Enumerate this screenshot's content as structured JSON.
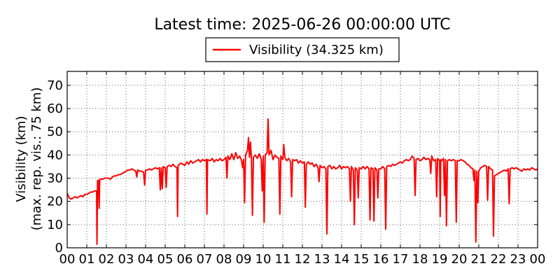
{
  "chart_data": {
    "type": "line",
    "title": "Latest time: 2025-06-26 00:00:00 UTC",
    "ylabel_line1": "Visibility (km)",
    "ylabel_line2": "(max. rep. vis.: 75 km)",
    "xlabel": "",
    "ylim": [
      0,
      75
    ],
    "xlim": [
      0,
      24
    ],
    "grid": true,
    "legend_position": "top-center",
    "x_tick_labels": [
      "00",
      "01",
      "02",
      "03",
      "04",
      "05",
      "06",
      "07",
      "08",
      "09",
      "10",
      "11",
      "12",
      "13",
      "14",
      "15",
      "16",
      "17",
      "18",
      "19",
      "20",
      "21",
      "22",
      "23",
      "00"
    ],
    "y_tick_labels": [
      "0",
      "10",
      "20",
      "30",
      "40",
      "50",
      "60",
      "70"
    ],
    "series": [
      {
        "name": "Visibility (34.325 km)",
        "color": "#ff0000",
        "points": [
          [
            0.0,
            23.5
          ],
          [
            0.1,
            21.5
          ],
          [
            0.2,
            21.0
          ],
          [
            0.3,
            21.5
          ],
          [
            0.4,
            22.0
          ],
          [
            0.5,
            21.5
          ],
          [
            0.6,
            22.0
          ],
          [
            0.7,
            22.5
          ],
          [
            0.8,
            22.0
          ],
          [
            0.9,
            23.0
          ],
          [
            1.0,
            23.0
          ],
          [
            1.1,
            23.5
          ],
          [
            1.2,
            24.0
          ],
          [
            1.3,
            24.0
          ],
          [
            1.4,
            24.5
          ],
          [
            1.5,
            24.5
          ],
          [
            1.52,
            1.5
          ],
          [
            1.55,
            29.0
          ],
          [
            1.6,
            29.0
          ],
          [
            1.63,
            17.0
          ],
          [
            1.66,
            29.5
          ],
          [
            1.8,
            29.5
          ],
          [
            1.9,
            30.0
          ],
          [
            2.0,
            30.0
          ],
          [
            2.1,
            30.0
          ],
          [
            2.2,
            29.5
          ],
          [
            2.3,
            30.5
          ],
          [
            2.4,
            31.0
          ],
          [
            2.5,
            31.0
          ],
          [
            2.6,
            31.5
          ],
          [
            2.7,
            31.5
          ],
          [
            2.8,
            32.0
          ],
          [
            2.9,
            32.5
          ],
          [
            3.0,
            33.0
          ],
          [
            3.1,
            33.5
          ],
          [
            3.2,
            33.5
          ],
          [
            3.3,
            34.0
          ],
          [
            3.4,
            33.5
          ],
          [
            3.5,
            33.0
          ],
          [
            3.55,
            30.5
          ],
          [
            3.6,
            33.5
          ],
          [
            3.7,
            33.0
          ],
          [
            3.8,
            33.0
          ],
          [
            3.9,
            32.5
          ],
          [
            3.95,
            27.0
          ],
          [
            4.0,
            33.5
          ],
          [
            4.1,
            33.5
          ],
          [
            4.2,
            34.0
          ],
          [
            4.3,
            33.5
          ],
          [
            4.4,
            34.0
          ],
          [
            4.5,
            34.5
          ],
          [
            4.6,
            34.0
          ],
          [
            4.7,
            34.5
          ],
          [
            4.75,
            25.0
          ],
          [
            4.8,
            34.5
          ],
          [
            4.85,
            25.5
          ],
          [
            4.9,
            35.0
          ],
          [
            5.0,
            34.5
          ],
          [
            5.05,
            26.0
          ],
          [
            5.1,
            35.0
          ],
          [
            5.2,
            35.5
          ],
          [
            5.3,
            35.0
          ],
          [
            5.4,
            36.0
          ],
          [
            5.5,
            35.0
          ],
          [
            5.6,
            34.5
          ],
          [
            5.63,
            13.5
          ],
          [
            5.66,
            35.5
          ],
          [
            5.8,
            36.5
          ],
          [
            5.9,
            36.0
          ],
          [
            6.0,
            35.5
          ],
          [
            6.1,
            37.0
          ],
          [
            6.2,
            36.0
          ],
          [
            6.3,
            37.5
          ],
          [
            6.4,
            36.5
          ],
          [
            6.5,
            37.0
          ],
          [
            6.6,
            37.5
          ],
          [
            6.7,
            38.0
          ],
          [
            6.8,
            37.0
          ],
          [
            6.9,
            38.0
          ],
          [
            7.0,
            37.5
          ],
          [
            7.1,
            38.0
          ],
          [
            7.13,
            14.5
          ],
          [
            7.16,
            38.0
          ],
          [
            7.3,
            37.5
          ],
          [
            7.4,
            38.5
          ],
          [
            7.5,
            37.0
          ],
          [
            7.6,
            38.0
          ],
          [
            7.7,
            37.5
          ],
          [
            7.8,
            38.5
          ],
          [
            7.9,
            37.5
          ],
          [
            8.0,
            38.0
          ],
          [
            8.1,
            39.0
          ],
          [
            8.15,
            30.0
          ],
          [
            8.2,
            39.5
          ],
          [
            8.3,
            38.0
          ],
          [
            8.4,
            40.5
          ],
          [
            8.5,
            38.0
          ],
          [
            8.6,
            41.0
          ],
          [
            8.7,
            38.5
          ],
          [
            8.8,
            39.5
          ],
          [
            8.9,
            37.5
          ],
          [
            8.95,
            34.5
          ],
          [
            9.0,
            38.0
          ],
          [
            9.05,
            19.5
          ],
          [
            9.1,
            40.0
          ],
          [
            9.2,
            42.0
          ],
          [
            9.25,
            47.5
          ],
          [
            9.3,
            39.0
          ],
          [
            9.35,
            45.5
          ],
          [
            9.4,
            38.5
          ],
          [
            9.45,
            14.0
          ],
          [
            9.5,
            39.0
          ],
          [
            9.6,
            40.0
          ],
          [
            9.7,
            38.5
          ],
          [
            9.8,
            40.5
          ],
          [
            9.9,
            38.0
          ],
          [
            9.95,
            24.5
          ],
          [
            10.0,
            39.5
          ],
          [
            10.05,
            11.0
          ],
          [
            10.1,
            40.0
          ],
          [
            10.2,
            41.0
          ],
          [
            10.25,
            55.5
          ],
          [
            10.3,
            40.0
          ],
          [
            10.4,
            42.0
          ],
          [
            10.5,
            38.0
          ],
          [
            10.6,
            40.0
          ],
          [
            10.7,
            39.0
          ],
          [
            10.8,
            38.5
          ],
          [
            10.85,
            14.5
          ],
          [
            10.9,
            39.5
          ],
          [
            11.0,
            38.0
          ],
          [
            11.05,
            44.5
          ],
          [
            11.1,
            39.0
          ],
          [
            11.2,
            37.5
          ],
          [
            11.3,
            38.5
          ],
          [
            11.4,
            37.0
          ],
          [
            11.45,
            22.0
          ],
          [
            11.5,
            38.0
          ],
          [
            11.6,
            37.5
          ],
          [
            11.7,
            38.0
          ],
          [
            11.8,
            36.5
          ],
          [
            11.9,
            37.5
          ],
          [
            12.0,
            36.5
          ],
          [
            12.1,
            37.0
          ],
          [
            12.15,
            17.5
          ],
          [
            12.2,
            36.0
          ],
          [
            12.3,
            37.0
          ],
          [
            12.4,
            36.0
          ],
          [
            12.5,
            36.5
          ],
          [
            12.6,
            35.0
          ],
          [
            12.7,
            36.0
          ],
          [
            12.8,
            34.5
          ],
          [
            12.85,
            28.5
          ],
          [
            12.9,
            35.5
          ],
          [
            13.0,
            34.5
          ],
          [
            13.1,
            35.0
          ],
          [
            13.2,
            34.0
          ],
          [
            13.25,
            6.0
          ],
          [
            13.3,
            35.0
          ],
          [
            13.4,
            35.5
          ],
          [
            13.5,
            34.0
          ],
          [
            13.6,
            35.0
          ],
          [
            13.7,
            34.0
          ],
          [
            13.8,
            34.5
          ],
          [
            13.9,
            35.5
          ],
          [
            14.0,
            34.0
          ],
          [
            14.1,
            35.0
          ],
          [
            14.2,
            34.5
          ],
          [
            14.3,
            35.0
          ],
          [
            14.4,
            34.0
          ],
          [
            14.45,
            20.0
          ],
          [
            14.5,
            35.0
          ],
          [
            14.6,
            33.5
          ],
          [
            14.65,
            10.0
          ],
          [
            14.7,
            34.5
          ],
          [
            14.8,
            33.5
          ],
          [
            14.85,
            21.5
          ],
          [
            14.9,
            34.5
          ],
          [
            15.0,
            34.0
          ],
          [
            15.1,
            35.0
          ],
          [
            15.2,
            34.0
          ],
          [
            15.3,
            35.0
          ],
          [
            15.4,
            34.0
          ],
          [
            15.45,
            12.0
          ],
          [
            15.5,
            34.5
          ],
          [
            15.6,
            34.0
          ],
          [
            15.65,
            11.5
          ],
          [
            15.7,
            34.5
          ],
          [
            15.8,
            33.5
          ],
          [
            15.85,
            21.5
          ],
          [
            15.9,
            34.0
          ],
          [
            16.0,
            34.0
          ],
          [
            16.1,
            35.0
          ],
          [
            16.2,
            34.0
          ],
          [
            16.25,
            8.0
          ],
          [
            16.3,
            35.0
          ],
          [
            16.4,
            35.5
          ],
          [
            16.5,
            35.0
          ],
          [
            16.6,
            36.0
          ],
          [
            16.7,
            35.5
          ],
          [
            16.8,
            36.0
          ],
          [
            16.9,
            36.5
          ],
          [
            17.0,
            37.0
          ],
          [
            17.1,
            36.5
          ],
          [
            17.2,
            37.5
          ],
          [
            17.3,
            38.0
          ],
          [
            17.4,
            37.5
          ],
          [
            17.5,
            38.0
          ],
          [
            17.6,
            39.5
          ],
          [
            17.7,
            38.5
          ],
          [
            17.75,
            22.5
          ],
          [
            17.8,
            38.0
          ],
          [
            17.9,
            38.5
          ],
          [
            18.0,
            37.5
          ],
          [
            18.1,
            38.0
          ],
          [
            18.2,
            39.0
          ],
          [
            18.3,
            38.0
          ],
          [
            18.4,
            38.5
          ],
          [
            18.5,
            38.0
          ],
          [
            18.55,
            32.0
          ],
          [
            18.6,
            39.5
          ],
          [
            18.7,
            37.5
          ],
          [
            18.8,
            38.0
          ],
          [
            18.85,
            22.0
          ],
          [
            18.9,
            38.5
          ],
          [
            19.0,
            37.5
          ],
          [
            19.03,
            13.5
          ],
          [
            19.06,
            38.0
          ],
          [
            19.1,
            37.5
          ],
          [
            19.2,
            38.5
          ],
          [
            19.25,
            22.5
          ],
          [
            19.3,
            38.0
          ],
          [
            19.35,
            9.5
          ],
          [
            19.4,
            37.5
          ],
          [
            19.5,
            38.0
          ],
          [
            19.6,
            37.5
          ],
          [
            19.7,
            38.0
          ],
          [
            19.8,
            37.5
          ],
          [
            19.85,
            11.0
          ],
          [
            19.9,
            37.5
          ],
          [
            20.0,
            37.5
          ],
          [
            20.1,
            38.0
          ],
          [
            20.2,
            37.5
          ],
          [
            20.3,
            37.0
          ],
          [
            20.4,
            36.0
          ],
          [
            20.5,
            35.5
          ],
          [
            20.6,
            34.5
          ],
          [
            20.7,
            34.0
          ],
          [
            20.75,
            29.0
          ],
          [
            20.8,
            33.5
          ],
          [
            20.85,
            2.5
          ],
          [
            20.9,
            33.0
          ],
          [
            20.95,
            19.5
          ],
          [
            21.0,
            33.0
          ],
          [
            21.1,
            34.5
          ],
          [
            21.2,
            35.0
          ],
          [
            21.3,
            35.5
          ],
          [
            21.4,
            35.0
          ],
          [
            21.45,
            20.5
          ],
          [
            21.5,
            35.0
          ],
          [
            21.6,
            34.0
          ],
          [
            21.7,
            33.5
          ],
          [
            21.75,
            5.0
          ],
          [
            21.8,
            31.0
          ],
          [
            21.9,
            31.5
          ],
          [
            22.0,
            32.0
          ],
          [
            22.1,
            32.5
          ],
          [
            22.2,
            33.0
          ],
          [
            22.3,
            33.5
          ],
          [
            22.4,
            33.0
          ],
          [
            22.5,
            34.0
          ],
          [
            22.55,
            19.0
          ],
          [
            22.6,
            34.0
          ],
          [
            22.7,
            34.5
          ],
          [
            22.8,
            34.0
          ],
          [
            22.9,
            34.5
          ],
          [
            23.0,
            34.0
          ],
          [
            23.1,
            33.5
          ],
          [
            23.2,
            33.0
          ],
          [
            23.3,
            34.0
          ],
          [
            23.4,
            33.5
          ],
          [
            23.5,
            34.0
          ],
          [
            23.6,
            33.5
          ],
          [
            23.7,
            34.5
          ],
          [
            23.8,
            34.0
          ],
          [
            23.9,
            33.5
          ],
          [
            24.0,
            34.0
          ]
        ]
      }
    ]
  }
}
